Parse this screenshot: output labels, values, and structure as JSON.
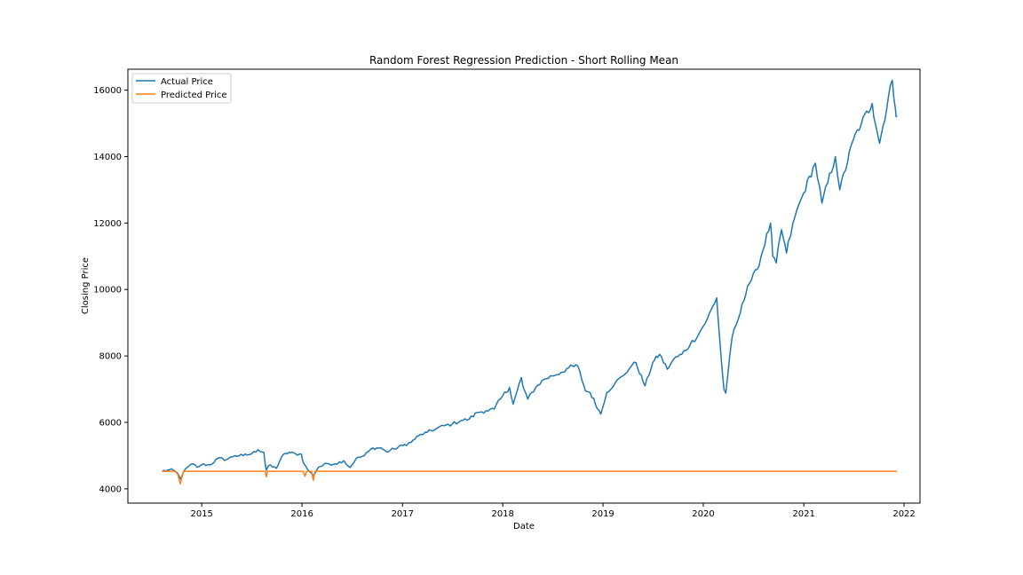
{
  "chart_data": {
    "type": "line",
    "title": "Random Forest Regression Prediction - Short Rolling Mean",
    "xlabel": "Date",
    "ylabel": "Closing Price",
    "xlim": [
      "2014-04-07",
      "2022-02-28"
    ],
    "ylim": [
      3570,
      16630
    ],
    "x_ticks": [
      "2015",
      "2016",
      "2017",
      "2018",
      "2019",
      "2020",
      "2021",
      "2022"
    ],
    "y_ticks": [
      4000,
      6000,
      8000,
      10000,
      12000,
      14000,
      16000
    ],
    "grid": false,
    "legend_position": "top-left",
    "colors": {
      "actual": "#1f77b4",
      "predicted": "#ff7f0e"
    },
    "series": [
      {
        "name": "Actual Price",
        "points": [
          [
            "2014-08-10",
            4530
          ],
          [
            "2014-09-01",
            4570
          ],
          [
            "2014-09-20",
            4560
          ],
          [
            "2014-10-05",
            4470
          ],
          [
            "2014-10-15",
            4300
          ],
          [
            "2014-10-25",
            4480
          ],
          [
            "2014-11-10",
            4650
          ],
          [
            "2014-12-01",
            4750
          ],
          [
            "2014-12-15",
            4650
          ],
          [
            "2015-01-01",
            4730
          ],
          [
            "2015-02-01",
            4720
          ],
          [
            "2015-03-01",
            4920
          ],
          [
            "2015-04-01",
            4880
          ],
          [
            "2015-05-01",
            5000
          ],
          [
            "2015-06-01",
            5000
          ],
          [
            "2015-07-01",
            5050
          ],
          [
            "2015-07-25",
            5180
          ],
          [
            "2015-08-15",
            5100
          ],
          [
            "2015-08-24",
            4560
          ],
          [
            "2015-09-01",
            4700
          ],
          [
            "2015-09-30",
            4620
          ],
          [
            "2015-10-20",
            4980
          ],
          [
            "2015-11-15",
            5100
          ],
          [
            "2015-12-10",
            5050
          ],
          [
            "2015-12-30",
            5040
          ],
          [
            "2016-01-08",
            4750
          ],
          [
            "2016-01-20",
            4600
          ],
          [
            "2016-02-11",
            4400
          ],
          [
            "2016-03-01",
            4650
          ],
          [
            "2016-04-01",
            4760
          ],
          [
            "2016-05-01",
            4750
          ],
          [
            "2016-06-01",
            4850
          ],
          [
            "2016-06-24",
            4640
          ],
          [
            "2016-07-15",
            4900
          ],
          [
            "2016-08-15",
            5000
          ],
          [
            "2016-09-15",
            5230
          ],
          [
            "2016-10-15",
            5230
          ],
          [
            "2016-11-04",
            5110
          ],
          [
            "2016-12-01",
            5200
          ],
          [
            "2017-01-01",
            5300
          ],
          [
            "2017-02-01",
            5400
          ],
          [
            "2017-03-01",
            5600
          ],
          [
            "2017-04-01",
            5700
          ],
          [
            "2017-05-01",
            5800
          ],
          [
            "2017-06-01",
            5900
          ],
          [
            "2017-07-01",
            5950
          ],
          [
            "2017-08-01",
            6050
          ],
          [
            "2017-09-01",
            6100
          ],
          [
            "2017-10-01",
            6300
          ],
          [
            "2017-11-01",
            6350
          ],
          [
            "2017-12-01",
            6400
          ],
          [
            "2018-01-01",
            6800
          ],
          [
            "2018-01-26",
            7050
          ],
          [
            "2018-02-08",
            6550
          ],
          [
            "2018-03-10",
            7350
          ],
          [
            "2018-03-15",
            7100
          ],
          [
            "2018-04-02",
            6700
          ],
          [
            "2018-05-01",
            7050
          ],
          [
            "2018-06-01",
            7300
          ],
          [
            "2018-07-01",
            7400
          ],
          [
            "2018-08-01",
            7500
          ],
          [
            "2018-08-30",
            7650
          ],
          [
            "2018-10-01",
            7700
          ],
          [
            "2018-10-29",
            6950
          ],
          [
            "2018-11-15",
            6900
          ],
          [
            "2018-12-24",
            6250
          ],
          [
            "2019-01-15",
            6900
          ],
          [
            "2019-02-15",
            7200
          ],
          [
            "2019-03-15",
            7400
          ],
          [
            "2019-04-15",
            7700
          ],
          [
            "2019-05-01",
            7800
          ],
          [
            "2019-06-03",
            7100
          ],
          [
            "2019-07-01",
            7800
          ],
          [
            "2019-07-26",
            8050
          ],
          [
            "2019-08-23",
            7600
          ],
          [
            "2019-09-15",
            7900
          ],
          [
            "2019-10-15",
            8050
          ],
          [
            "2019-11-15",
            8350
          ],
          [
            "2019-12-15",
            8650
          ],
          [
            "2020-01-15",
            9100
          ],
          [
            "2020-02-19",
            9750
          ],
          [
            "2020-03-01",
            8500
          ],
          [
            "2020-03-16",
            7000
          ],
          [
            "2020-03-23",
            6880
          ],
          [
            "2020-04-15",
            8550
          ],
          [
            "2020-05-15",
            9300
          ],
          [
            "2020-06-10",
            10100
          ],
          [
            "2020-07-15",
            10600
          ],
          [
            "2020-09-02",
            12000
          ],
          [
            "2020-09-10",
            11000
          ],
          [
            "2020-09-23",
            10800
          ],
          [
            "2020-10-12",
            11800
          ],
          [
            "2020-10-30",
            11100
          ],
          [
            "2020-11-30",
            12200
          ],
          [
            "2020-12-31",
            12900
          ],
          [
            "2021-02-12",
            13800
          ],
          [
            "2021-03-08",
            12600
          ],
          [
            "2021-04-26",
            14000
          ],
          [
            "2021-05-12",
            13000
          ],
          [
            "2021-06-30",
            14500
          ],
          [
            "2021-07-30",
            15000
          ],
          [
            "2021-09-07",
            15600
          ],
          [
            "2021-10-04",
            14400
          ],
          [
            "2021-11-19",
            16300
          ],
          [
            "2021-12-01",
            15400
          ],
          [
            "2021-12-06",
            15250
          ]
        ]
      },
      {
        "name": "Predicted Price",
        "points": [
          [
            "2014-08-10",
            4530
          ],
          [
            "2014-09-25",
            4530
          ],
          [
            "2014-10-05",
            4450
          ],
          [
            "2014-10-10",
            4300
          ],
          [
            "2014-10-15",
            4150
          ],
          [
            "2014-10-20",
            4320
          ],
          [
            "2014-10-27",
            4530
          ],
          [
            "2015-08-20",
            4530
          ],
          [
            "2015-08-24",
            4360
          ],
          [
            "2015-08-28",
            4530
          ],
          [
            "2016-01-05",
            4530
          ],
          [
            "2016-01-12",
            4380
          ],
          [
            "2016-01-18",
            4530
          ],
          [
            "2016-02-05",
            4530
          ],
          [
            "2016-02-11",
            4260
          ],
          [
            "2016-02-17",
            4530
          ],
          [
            "2021-12-06",
            4530
          ]
        ]
      }
    ]
  }
}
